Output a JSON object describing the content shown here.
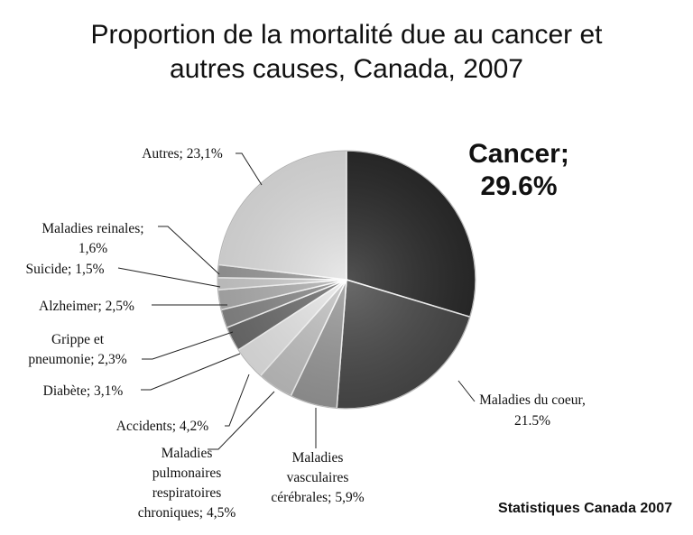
{
  "chart_data": {
    "type": "pie",
    "title": "Proportion de la mortalité due au cancer et autres causes, Canada, 2007",
    "title_lines": [
      "Proportion de la mortalité due au cancer et",
      "autres causes, Canada, 2007"
    ],
    "slices": [
      {
        "label": "Cancer",
        "value": 29.6,
        "text_lines": [
          "Cancer;",
          "29.6%"
        ],
        "color": "#2b2b2b"
      },
      {
        "label": "Maladies du coeur",
        "value": 21.5,
        "text_lines": [
          "Maladies du coeur,",
          "21.5%"
        ],
        "color": "#4a4a4a"
      },
      {
        "label": "Maladies vasculaires cérébrales",
        "value": 5.9,
        "text_lines": [
          "Maladies",
          "vasculaires",
          "cérébrales; 5,9%"
        ],
        "color": "#9a9a9a"
      },
      {
        "label": "Maladies pulmonaires respiratoires chroniques",
        "value": 4.5,
        "text_lines": [
          "Maladies",
          "pulmonaires",
          "respiratoires",
          "chroniques; 4,5%"
        ],
        "color": "#c4c4c4"
      },
      {
        "label": "Accidents",
        "value": 4.2,
        "text_lines": [
          "Accidents; 4,2%"
        ],
        "color": "#e9e9e9"
      },
      {
        "label": "Diabète",
        "value": 3.1,
        "text_lines": [
          "Diabète; 3,1%"
        ],
        "color": "#6f6f6f"
      },
      {
        "label": "Grippe et pneumonie",
        "value": 2.3,
        "text_lines": [
          "Grippe et",
          "pneumonie; 2,3%"
        ],
        "color": "#8a8a8a"
      },
      {
        "label": "Alzheimer",
        "value": 2.5,
        "text_lines": [
          "Alzheimer; 2,5%"
        ],
        "color": "#b2b2b2"
      },
      {
        "label": "Suicide",
        "value": 1.5,
        "text_lines": [
          "Suicide; 1,5%"
        ],
        "color": "#d0d0d0"
      },
      {
        "label": "Maladies reinales",
        "value": 1.6,
        "text_lines": [
          "Maladies reinales;",
          "1,6%"
        ],
        "color": "#9e9e9e"
      },
      {
        "label": "Autres",
        "value": 23.1,
        "text_lines": [
          "Autres; 23,1%"
        ],
        "color": "#e4e4e4"
      }
    ],
    "source": "Statistiques Canada 2007"
  }
}
